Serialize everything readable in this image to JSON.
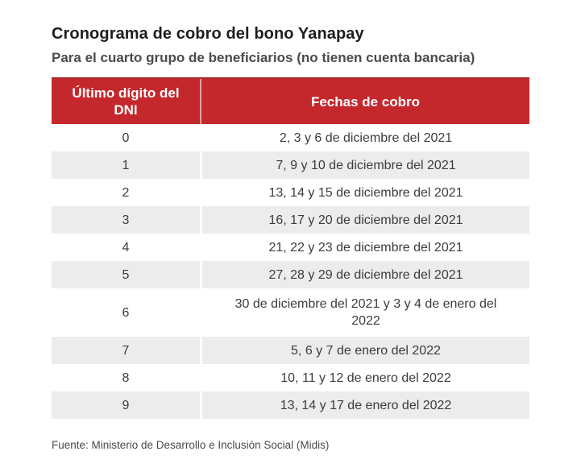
{
  "header": {
    "title": "Cronograma de cobro del bono Yanapay",
    "subtitle": "Para el cuarto grupo de beneficiarios (no tienen cuenta bancaria)"
  },
  "footer": {
    "source": "Fuente: Ministerio de Desarrollo e Inclusión Social (Midis)"
  },
  "colors": {
    "header_bg": "#c4282d",
    "header_text": "#ffffff",
    "alt_row_bg": "#ececec",
    "body_text": "#3c3c3c",
    "title_text": "#1e1e1e",
    "subtitle_text": "#4b4b4b"
  },
  "chart_data": {
    "type": "table",
    "title": "Cronograma de cobro del bono Yanapay",
    "subtitle": "Para el cuarto grupo de beneficiarios (no tienen cuenta bancaria)",
    "columns": [
      "Último dígito del DNI",
      "Fechas de cobro"
    ],
    "rows": [
      [
        "0",
        "2, 3 y 6 de diciembre del 2021"
      ],
      [
        "1",
        "7, 9 y 10 de diciembre del 2021"
      ],
      [
        "2",
        "13, 14 y 15 de diciembre del 2021"
      ],
      [
        "3",
        "16, 17 y 20 de diciembre del 2021"
      ],
      [
        "4",
        "21, 22 y 23 de diciembre del 2021"
      ],
      [
        "5",
        "27, 28 y 29 de diciembre del 2021"
      ],
      [
        "6",
        "30 de diciembre del 2021 y 3 y 4 de enero del 2022"
      ],
      [
        "7",
        "5, 6 y 7 de enero del 2022"
      ],
      [
        "8",
        "10, 11 y 12 de enero del 2022"
      ],
      [
        "9",
        "13, 14 y 17 de enero del 2022"
      ]
    ],
    "source": "Fuente: Ministerio de Desarrollo e Inclusión Social (Midis)"
  }
}
